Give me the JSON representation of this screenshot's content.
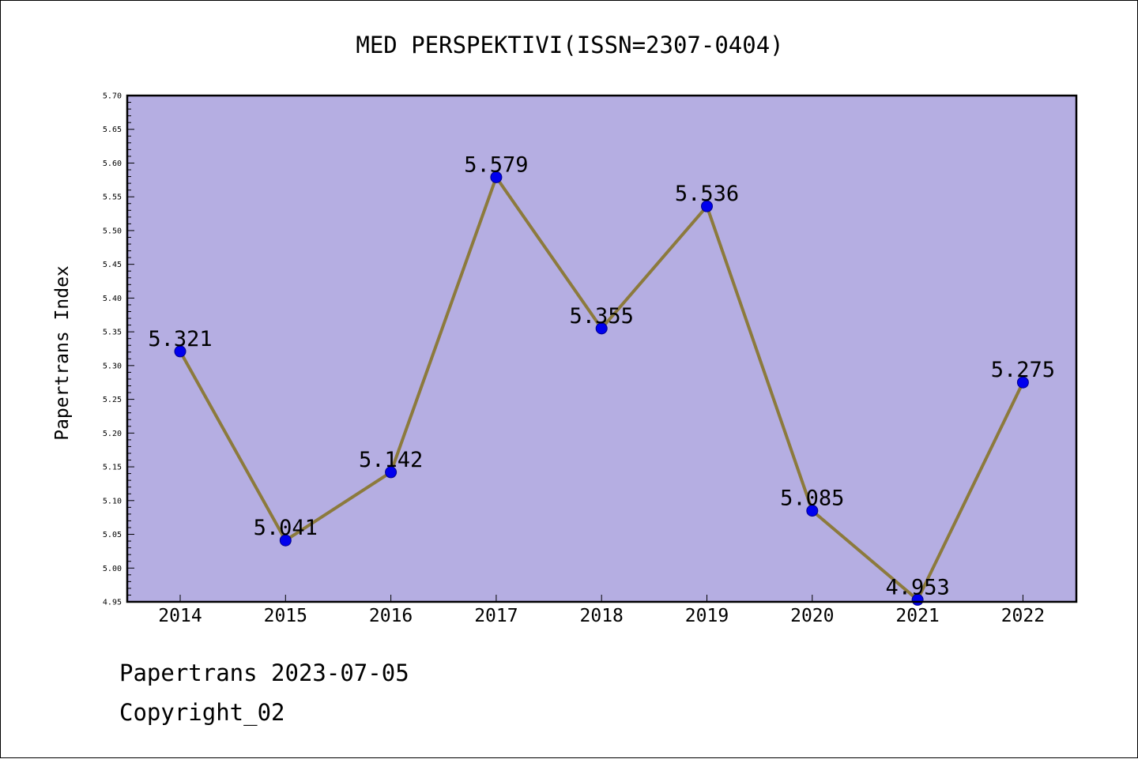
{
  "chart_data": {
    "type": "line",
    "title": "MED PERSPEKTIVI(ISSN=2307-0404)",
    "xlabel": "",
    "ylabel": "Papertrans Index",
    "categories": [
      "2014",
      "2015",
      "2016",
      "2017",
      "2018",
      "2019",
      "2020",
      "2021",
      "2022"
    ],
    "series": [
      {
        "values": [
          5.321,
          5.041,
          5.142,
          5.579,
          5.355,
          5.536,
          5.085,
          4.953,
          5.275
        ],
        "labels": [
          "5.321",
          "5.041",
          "5.142",
          "5.579",
          "5.355",
          "5.536",
          "5.085",
          "4.953",
          "5.275"
        ]
      }
    ],
    "ylim": [
      4.95,
      5.7
    ],
    "yticks": [
      "4.95",
      "5.00",
      "5.05",
      "5.10",
      "5.15",
      "5.20",
      "5.25",
      "5.30",
      "5.35",
      "5.40",
      "5.45",
      "5.50",
      "5.55",
      "5.60",
      "5.65",
      "5.70"
    ],
    "grid": false,
    "legend": "none",
    "colors": {
      "plot_background": "#b5aee2",
      "line": "#8c7a3c",
      "marker_fill": "#0000ee",
      "marker_edge": "#00008b"
    }
  },
  "footer": {
    "date_text": "Papertrans 2023-07-05",
    "copyright_text": "Copyright_02"
  }
}
